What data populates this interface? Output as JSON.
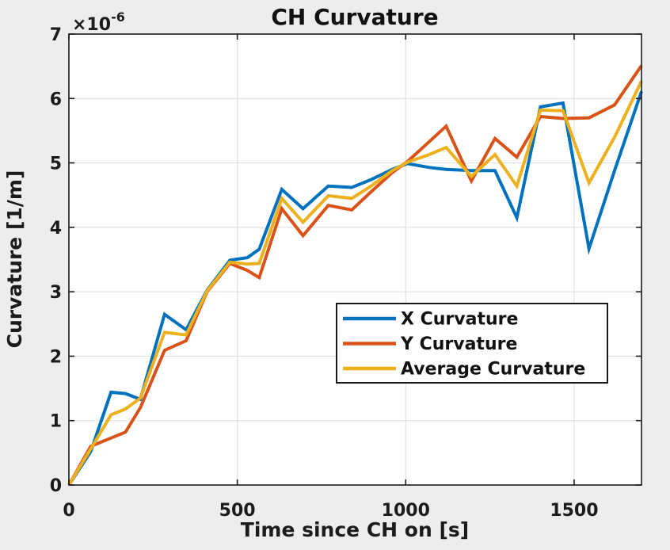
{
  "window": {
    "background_color": "#ededed"
  },
  "chart_data": {
    "type": "line",
    "title": "CH Curvature",
    "xlabel": "Time since CH on [s]",
    "ylabel": "Curvature [1/m]",
    "y_exponent_base": "×10",
    "y_exponent_power": "-6",
    "y_unit_scale": "1e-6",
    "xlim": [
      0,
      1700
    ],
    "ylim": [
      0,
      7
    ],
    "grid": true,
    "legend_position": "middle-right",
    "x_ticks": [
      0,
      500,
      1000,
      1500
    ],
    "x_tick_labels": [
      "0",
      "500",
      "1000",
      "1500"
    ],
    "y_ticks": [
      0,
      1,
      2,
      3,
      4,
      5,
      6,
      7
    ],
    "y_tick_labels": [
      "0",
      "1",
      "2",
      "3",
      "4",
      "5",
      "6",
      "7"
    ],
    "x": [
      0,
      65,
      125,
      168,
      212,
      284,
      348,
      410,
      478,
      530,
      565,
      632,
      695,
      770,
      840,
      897,
      960,
      1005,
      1070,
      1120,
      1195,
      1265,
      1330,
      1400,
      1467,
      1544,
      1620,
      1700
    ],
    "series": [
      {
        "name": "X Curvature",
        "color": "#0072BD",
        "values": [
          0,
          0.52,
          1.44,
          1.42,
          1.33,
          2.65,
          2.41,
          3.02,
          3.49,
          3.53,
          3.66,
          4.59,
          4.29,
          4.64,
          4.62,
          4.74,
          4.9,
          4.99,
          4.93,
          4.9,
          4.88,
          4.88,
          4.15,
          5.87,
          5.93,
          3.67,
          4.88,
          6.11
        ]
      },
      {
        "name": "Y Curvature",
        "color": "#D95319",
        "values": [
          0,
          0.6,
          0.73,
          0.82,
          1.2,
          2.09,
          2.24,
          3.0,
          3.44,
          3.33,
          3.22,
          4.29,
          3.87,
          4.34,
          4.27,
          4.55,
          4.85,
          5.02,
          5.33,
          5.57,
          4.72,
          5.38,
          5.09,
          5.72,
          5.69,
          5.7,
          5.9,
          6.51
        ]
      },
      {
        "name": "Average Curvature",
        "color": "#EDB120",
        "values": [
          0,
          0.56,
          1.09,
          1.18,
          1.35,
          2.37,
          2.33,
          3.01,
          3.46,
          3.43,
          3.44,
          4.45,
          4.08,
          4.49,
          4.45,
          4.64,
          4.88,
          5.01,
          5.13,
          5.24,
          4.79,
          5.13,
          4.64,
          5.82,
          5.81,
          4.69,
          5.4,
          6.27
        ]
      }
    ],
    "colors": {
      "axis": "#1b1b1b",
      "grid": "#dbdbdb",
      "plot_background": "#ffffff",
      "figure_background": "#ededed",
      "text": "#1b1b1b"
    }
  }
}
